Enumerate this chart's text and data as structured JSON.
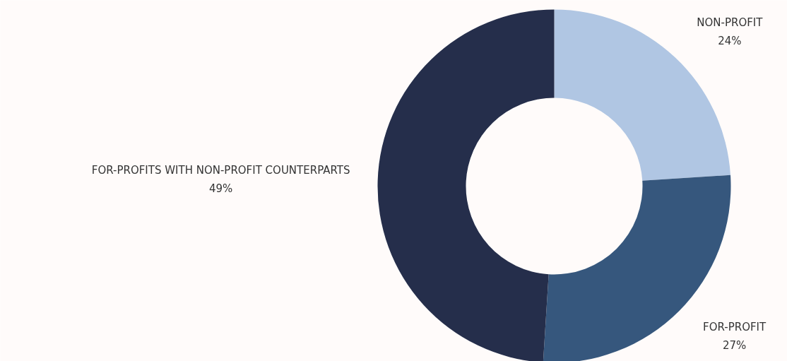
{
  "chart_data": {
    "type": "donut",
    "categories": [
      "NON-PROFIT",
      "FOR-PROFIT",
      "FOR-PROFITS WITH NON-PROFIT COUNTERPARTS"
    ],
    "values": [
      24,
      27,
      49
    ],
    "colors": [
      "#b0c6e3",
      "#36577d",
      "#252e4b"
    ],
    "value_labels": [
      "24%",
      "27%",
      "49%"
    ]
  }
}
